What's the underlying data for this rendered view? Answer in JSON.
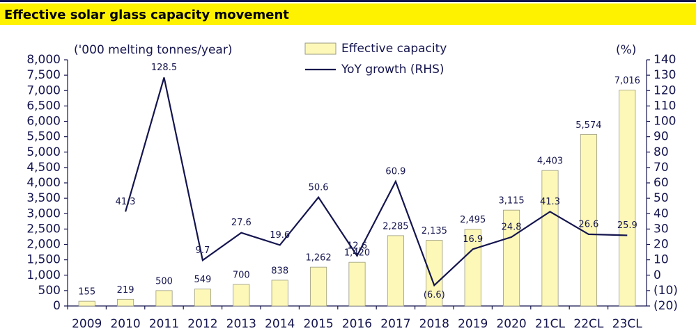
{
  "chart_data": {
    "type": "bar-line",
    "title": "Effective solar glass capacity movement",
    "y_label": "('000 melting tonnes/year)",
    "y2_label": "(%)",
    "categories": [
      "2009",
      "2010",
      "2011",
      "2012",
      "2013",
      "2014",
      "2015",
      "2016",
      "2017",
      "2018",
      "2019",
      "2020",
      "21CL",
      "22CL",
      "23CL"
    ],
    "series": [
      {
        "name": "Effective capacity",
        "type": "bar",
        "color": "#fdf8b8",
        "values": [
          155,
          219,
          500,
          549,
          700,
          838,
          1262,
          1420,
          2285,
          2135,
          2495,
          3115,
          4403,
          5574,
          7016
        ],
        "value_labels": [
          "155",
          "219",
          "500",
          "549",
          "700",
          "838",
          "1,262",
          "1,420",
          "2,285",
          "2,135",
          "2,495",
          "3,115",
          "4,403",
          "5,574",
          "7,016"
        ]
      },
      {
        "name": "YoY growth (RHS)",
        "type": "line",
        "axis": "y2",
        "color": "#15154f",
        "values": [
          null,
          41.3,
          128.5,
          9.7,
          27.6,
          19.6,
          50.6,
          12.6,
          60.9,
          -6.6,
          16.9,
          24.8,
          41.3,
          26.6,
          25.9
        ],
        "value_labels": [
          null,
          "41.3",
          "128.5",
          "9.7",
          "27.6",
          "19.6",
          "50.6",
          "12.6",
          "60.9",
          "(6.6)",
          "16.9",
          "24.8",
          "41.3",
          "26.6",
          "25.9"
        ]
      }
    ],
    "ylim": [
      0,
      8000
    ],
    "yticks": [
      0,
      500,
      {
        "value": 1000,
        "label": "1,000"
      },
      {
        "value": 1500,
        "label": "1,500"
      },
      {
        "value": 2000,
        "label": "2,000"
      },
      {
        "value": 2500,
        "label": "2,500"
      },
      {
        "value": 3000,
        "label": "3,000"
      },
      {
        "value": 3500,
        "label": "3,500"
      },
      {
        "value": 4000,
        "label": "4,000"
      },
      {
        "value": 4500,
        "label": "4,500"
      },
      {
        "value": 5000,
        "label": "5,000"
      },
      {
        "value": 5500,
        "label": "5,500"
      },
      {
        "value": 6000,
        "label": "6,000"
      },
      {
        "value": 6500,
        "label": "6,500"
      },
      {
        "value": 7000,
        "label": "7,000"
      },
      {
        "value": 7500,
        "label": "7,500"
      },
      {
        "value": 8000,
        "label": "8,000"
      }
    ],
    "y2lim": [
      -20,
      140
    ],
    "y2ticks": [
      {
        "value": -20,
        "label": "(20)"
      },
      {
        "value": -10,
        "label": "(10)"
      },
      0,
      10,
      20,
      30,
      40,
      50,
      60,
      70,
      80,
      90,
      100,
      110,
      120,
      130,
      140
    ],
    "grid": false
  }
}
